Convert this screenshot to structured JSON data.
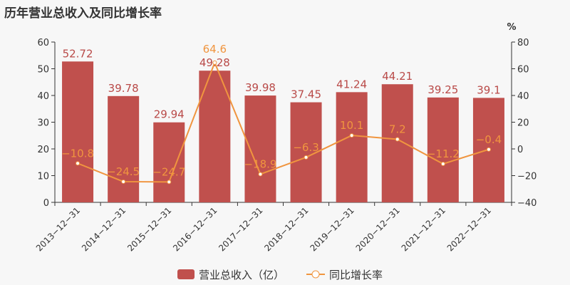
{
  "chart_data": {
    "type": "bar+line",
    "title": "历年营业总收入及同比增长率",
    "categories": [
      "2013-12-31",
      "2014-12-31",
      "2015-12-31",
      "2016-12-31",
      "2017-12-31",
      "2018-12-31",
      "2019-12-31",
      "2020-12-31",
      "2021-12-31",
      "2022-12-31"
    ],
    "series": [
      {
        "name": "营业总收入（亿）",
        "type": "bar",
        "axis": "left",
        "color": "#c0504d",
        "values": [
          52.72,
          39.78,
          29.94,
          49.28,
          39.98,
          37.45,
          41.24,
          44.21,
          39.25,
          39.1
        ]
      },
      {
        "name": "同比增长率",
        "type": "line",
        "axis": "right",
        "color": "#f0953f",
        "values": [
          -10.8,
          -24.5,
          -24.7,
          64.6,
          -18.9,
          -6.3,
          10.1,
          7.2,
          -11.2,
          -0.4
        ]
      }
    ],
    "y_left": {
      "ylim": [
        0,
        60
      ],
      "ticks": [
        0,
        10,
        20,
        30,
        40,
        50,
        60
      ]
    },
    "y_right": {
      "label": "%",
      "ylim": [
        -40,
        80
      ],
      "ticks": [
        -40,
        -20,
        0,
        20,
        40,
        60,
        80
      ]
    },
    "grid": false,
    "legend": "bottom"
  }
}
